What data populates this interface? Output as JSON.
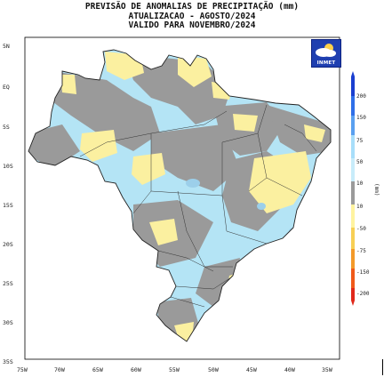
{
  "header": {
    "title": "PREVISÃO DE ANOMALIAS DE PRECIPITAÇÃO (mm)",
    "subtitle1": "ATUALIZACAO - AGOSTO/2024",
    "subtitle2": "VALIDO PARA NOVEMBRO/2024"
  },
  "logo": {
    "text": "INMET",
    "icon": "cloud-sun-icon"
  },
  "axes": {
    "lat_labels": [
      "5N",
      "EQ",
      "5S",
      "10S",
      "15S",
      "20S",
      "25S",
      "30S",
      "35S"
    ],
    "lon_labels": [
      "75W",
      "70W",
      "65W",
      "60W",
      "55W",
      "50W",
      "45W",
      "40W",
      "35W"
    ]
  },
  "colorbar": {
    "unit": "(mm)",
    "labels": [
      "200",
      "150",
      "75",
      "50",
      "10",
      "10",
      "-50",
      "-75",
      "-150",
      "-200"
    ],
    "colors": [
      "#1a3fd0",
      "#2f6fe8",
      "#5aa0f0",
      "#a8defa",
      "#c8ecfa",
      "#9a9a9a",
      "#fff3a0",
      "#f7cf55",
      "#f39a2a",
      "#f05a1a",
      "#e0281a"
    ]
  },
  "legend_colors": {
    "positive_anomaly": "#b4e4f5",
    "neutral": "#9a9a9a",
    "negative_anomaly": "#fbf0a0",
    "strong_positive": "#9ccfea"
  }
}
